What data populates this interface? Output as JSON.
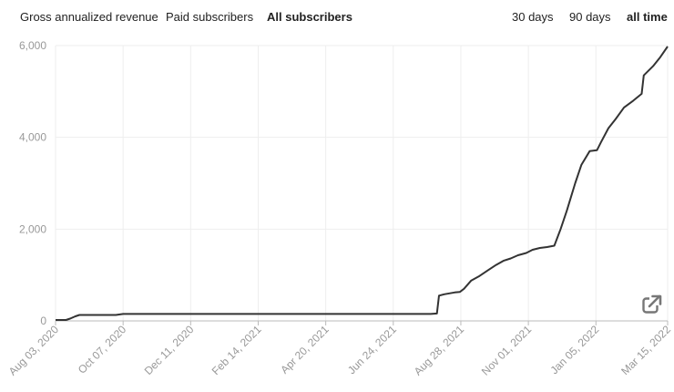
{
  "metric_tabs": [
    {
      "label": "Gross annualized revenue",
      "active": false
    },
    {
      "label": "Paid subscribers",
      "active": false
    },
    {
      "label": "All subscribers",
      "active": true
    }
  ],
  "range_tabs": [
    {
      "label": "30 days",
      "active": false
    },
    {
      "label": "90 days",
      "active": false
    },
    {
      "label": "all time",
      "active": true
    }
  ],
  "expand_icon": "external-link-icon",
  "colors": {
    "line": "#333333",
    "grid": "#eeeeee",
    "axis": "#bbbbbb",
    "tick_text": "#999999"
  },
  "chart_data": {
    "type": "line",
    "grid": true,
    "ylim": [
      0,
      6000
    ],
    "y_ticks": [
      "0",
      "2,000",
      "4,000",
      "6,000"
    ],
    "y_tick_values": [
      0,
      2000,
      4000,
      6000
    ],
    "x_ticks": [
      "Aug 03, 2020",
      "Oct 07, 2020",
      "Dec 11, 2020",
      "Feb 14, 2021",
      "Apr 20, 2021",
      "Jun 24, 2021",
      "Aug 28, 2021",
      "Nov 01, 2021",
      "Jan 05, 2022",
      "Mar 15, 2022"
    ],
    "xlim": [
      "2020-08-03",
      "2022-03-15"
    ],
    "series": [
      {
        "x": [
          "2020-08-03",
          "2020-08-13",
          "2020-08-17",
          "2020-08-22",
          "2020-08-26",
          "2020-09-30",
          "2020-10-07",
          "2021-07-30",
          "2021-08-05",
          "2021-08-07",
          "2021-08-12",
          "2021-08-22",
          "2021-08-27",
          "2021-08-31",
          "2021-09-07",
          "2021-09-15",
          "2021-09-23",
          "2021-10-01",
          "2021-10-08",
          "2021-10-15",
          "2021-10-22",
          "2021-10-30",
          "2021-11-05",
          "2021-11-12",
          "2021-11-19",
          "2021-11-26",
          "2021-12-02",
          "2021-12-08",
          "2021-12-12",
          "2021-12-16",
          "2021-12-22",
          "2021-12-30",
          "2022-01-06",
          "2022-01-10",
          "2022-01-17",
          "2022-01-24",
          "2022-02-01",
          "2022-02-10",
          "2022-02-18",
          "2022-02-20",
          "2022-03-01",
          "2022-03-08",
          "2022-03-15"
        ],
        "values": [
          20,
          20,
          50,
          100,
          130,
          130,
          150,
          150,
          160,
          550,
          580,
          620,
          630,
          700,
          880,
          980,
          1100,
          1220,
          1310,
          1360,
          1430,
          1480,
          1550,
          1590,
          1610,
          1640,
          2000,
          2400,
          2700,
          3000,
          3400,
          3700,
          3720,
          3900,
          4200,
          4400,
          4650,
          4800,
          4950,
          5350,
          5550,
          5750,
          5980
        ]
      }
    ]
  }
}
